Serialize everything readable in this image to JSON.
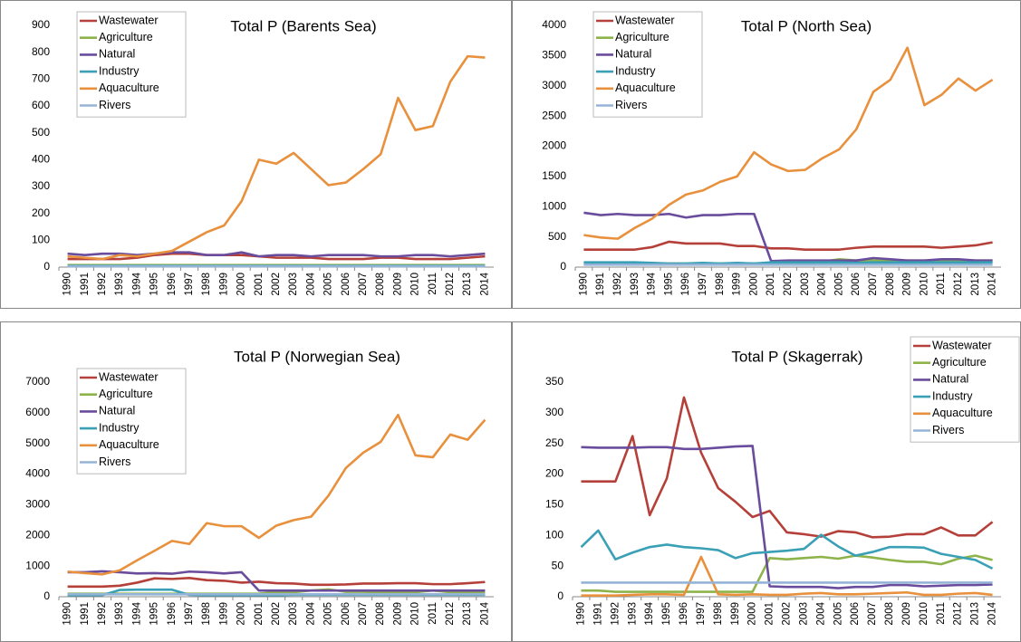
{
  "chart_data": [
    {
      "type": "line",
      "title": "Total P (Barents Sea)",
      "legend": "upper left",
      "grid": false,
      "categories": [
        "1990",
        "1991",
        "1992",
        "1993",
        "1994",
        "1995",
        "1996",
        "1997",
        "1998",
        "1999",
        "2000",
        "2001",
        "2002",
        "2003",
        "2004",
        "2005",
        "2006",
        "2007",
        "2008",
        "2009",
        "2010",
        "2011",
        "2012",
        "2013",
        "2014"
      ],
      "ylim": [
        0,
        900
      ],
      "yticks": [
        0,
        100,
        200,
        300,
        400,
        500,
        600,
        700,
        800,
        900
      ],
      "series": [
        {
          "name": "Wastewater",
          "color": "#b5403a",
          "values": [
            30,
            30,
            30,
            30,
            35,
            45,
            50,
            50,
            45,
            45,
            45,
            40,
            35,
            35,
            35,
            30,
            30,
            30,
            35,
            35,
            30,
            30,
            30,
            35,
            40
          ]
        },
        {
          "name": "Agriculture",
          "color": "#8db34a",
          "values": [
            8,
            8,
            8,
            8,
            8,
            8,
            8,
            8,
            8,
            8,
            8,
            8,
            8,
            8,
            8,
            8,
            8,
            8,
            8,
            8,
            8,
            8,
            8,
            8,
            8
          ]
        },
        {
          "name": "Natural",
          "color": "#6a4c9c",
          "values": [
            50,
            45,
            50,
            50,
            45,
            50,
            55,
            55,
            45,
            45,
            55,
            40,
            45,
            45,
            40,
            45,
            45,
            45,
            40,
            40,
            45,
            45,
            40,
            45,
            50
          ]
        },
        {
          "name": "Industry",
          "color": "#3aa0b5",
          "values": [
            5,
            5,
            5,
            5,
            5,
            5,
            5,
            5,
            5,
            5,
            5,
            5,
            5,
            5,
            5,
            5,
            5,
            5,
            5,
            5,
            5,
            5,
            5,
            5,
            5
          ]
        },
        {
          "name": "Aquaculture",
          "color": "#e8903c",
          "values": [
            40,
            35,
            30,
            45,
            40,
            50,
            60,
            95,
            130,
            155,
            245,
            400,
            385,
            425,
            365,
            305,
            315,
            365,
            420,
            630,
            510,
            525,
            690,
            785,
            780
          ]
        },
        {
          "name": "Rivers",
          "color": "#95b3d7",
          "values": [
            3,
            3,
            3,
            3,
            3,
            3,
            3,
            3,
            3,
            3,
            3,
            3,
            3,
            3,
            3,
            3,
            3,
            3,
            3,
            3,
            3,
            3,
            3,
            3,
            3
          ]
        }
      ]
    },
    {
      "type": "line",
      "title": "Total P (North Sea)",
      "legend": "upper left",
      "grid": false,
      "categories": [
        "1990",
        "1991",
        "1992",
        "1993",
        "1994",
        "1995",
        "1996",
        "1997",
        "1998",
        "1999",
        "2000",
        "2001",
        "2002",
        "2003",
        "2004",
        "2005",
        "2006",
        "2007",
        "2008",
        "2009",
        "2010",
        "2011",
        "2012",
        "2013",
        "2014"
      ],
      "ylim": [
        0,
        4000
      ],
      "yticks": [
        0,
        500,
        1000,
        1500,
        2000,
        2500,
        3000,
        3500,
        4000
      ],
      "series": [
        {
          "name": "Wastewater",
          "color": "#b5403a",
          "values": [
            290,
            290,
            290,
            290,
            330,
            420,
            390,
            390,
            390,
            350,
            350,
            310,
            310,
            290,
            290,
            290,
            320,
            340,
            340,
            340,
            340,
            320,
            340,
            360,
            410
          ]
        },
        {
          "name": "Agriculture",
          "color": "#8db34a",
          "values": [
            60,
            60,
            60,
            60,
            60,
            60,
            60,
            60,
            60,
            60,
            60,
            60,
            80,
            80,
            90,
            130,
            110,
            110,
            100,
            110,
            110,
            100,
            110,
            110,
            110
          ]
        },
        {
          "name": "Natural",
          "color": "#6a4c9c",
          "values": [
            900,
            860,
            880,
            860,
            860,
            880,
            820,
            860,
            860,
            880,
            880,
            100,
            110,
            110,
            110,
            110,
            110,
            150,
            130,
            110,
            110,
            130,
            130,
            110,
            110
          ]
        },
        {
          "name": "Industry",
          "color": "#3aa0b5",
          "values": [
            80,
            80,
            80,
            80,
            70,
            60,
            60,
            70,
            60,
            70,
            60,
            80,
            80,
            80,
            80,
            80,
            70,
            80,
            80,
            80,
            80,
            80,
            80,
            80,
            80
          ]
        },
        {
          "name": "Aquaculture",
          "color": "#e8903c",
          "values": [
            530,
            490,
            470,
            650,
            800,
            1030,
            1200,
            1270,
            1410,
            1500,
            1900,
            1700,
            1590,
            1610,
            1800,
            1950,
            2280,
            2900,
            3100,
            3630,
            2680,
            2850,
            3120,
            2920,
            3100
          ]
        },
        {
          "name": "Rivers",
          "color": "#95b3d7",
          "values": [
            40,
            40,
            40,
            40,
            40,
            40,
            40,
            40,
            40,
            40,
            40,
            40,
            40,
            40,
            40,
            40,
            40,
            40,
            40,
            40,
            40,
            40,
            40,
            40,
            40
          ]
        }
      ]
    },
    {
      "type": "line",
      "title": "Total P (Norwegian Sea)",
      "legend": "upper left",
      "grid": false,
      "categories": [
        "1990",
        "1991",
        "1992",
        "1993",
        "1994",
        "1995",
        "1996",
        "1997",
        "1998",
        "1999",
        "2000",
        "2001",
        "2002",
        "2003",
        "2004",
        "2005",
        "2006",
        "2007",
        "2008",
        "2009",
        "2010",
        "2011",
        "2012",
        "2013",
        "2014"
      ],
      "ylim": [
        0,
        7000
      ],
      "yticks": [
        0,
        1000,
        2000,
        3000,
        4000,
        5000,
        6000,
        7000
      ],
      "series": [
        {
          "name": "Wastewater",
          "color": "#b5403a",
          "values": [
            330,
            330,
            330,
            360,
            460,
            600,
            580,
            610,
            540,
            520,
            460,
            490,
            440,
            430,
            390,
            390,
            400,
            430,
            430,
            440,
            440,
            410,
            410,
            440,
            480
          ]
        },
        {
          "name": "Agriculture",
          "color": "#8db34a",
          "values": [
            100,
            100,
            100,
            100,
            100,
            100,
            100,
            100,
            100,
            100,
            100,
            100,
            150,
            150,
            200,
            240,
            160,
            160,
            150,
            160,
            150,
            200,
            150,
            150,
            150
          ]
        },
        {
          "name": "Natural",
          "color": "#6a4c9c",
          "values": [
            800,
            800,
            830,
            800,
            760,
            770,
            750,
            820,
            800,
            760,
            800,
            200,
            200,
            200,
            200,
            200,
            200,
            200,
            200,
            200,
            200,
            200,
            200,
            200,
            200
          ]
        },
        {
          "name": "Industry",
          "color": "#3aa0b5",
          "values": [
            50,
            50,
            50,
            220,
            230,
            230,
            230,
            60,
            50,
            50,
            50,
            50,
            50,
            60,
            60,
            60,
            60,
            60,
            60,
            60,
            60,
            60,
            60,
            60,
            60
          ]
        },
        {
          "name": "Aquaculture",
          "color": "#e8903c",
          "values": [
            820,
            770,
            730,
            860,
            1190,
            1500,
            1820,
            1720,
            2400,
            2300,
            2300,
            1920,
            2320,
            2500,
            2610,
            3300,
            4200,
            4700,
            5050,
            5930,
            4610,
            4550,
            5290,
            5120,
            5770
          ]
        },
        {
          "name": "Rivers",
          "color": "#95b3d7",
          "values": [
            80,
            80,
            80,
            80,
            80,
            80,
            80,
            80,
            80,
            80,
            80,
            80,
            80,
            80,
            80,
            80,
            80,
            80,
            80,
            80,
            80,
            80,
            80,
            80,
            80
          ]
        }
      ]
    },
    {
      "type": "line",
      "title": "Total P (Skagerrak)",
      "legend": "upper right",
      "grid": false,
      "categories": [
        "1990",
        "1991",
        "1992",
        "1993",
        "1994",
        "1995",
        "1996",
        "1997",
        "1998",
        "1999",
        "2000",
        "2001",
        "2002",
        "2003",
        "2004",
        "2005",
        "2006",
        "2007",
        "2008",
        "2009",
        "2010",
        "2011",
        "2012",
        "2013",
        "2014"
      ],
      "ylim": [
        0,
        350
      ],
      "yticks": [
        0,
        50,
        100,
        150,
        200,
        250,
        300,
        350
      ],
      "series": [
        {
          "name": "Wastewater",
          "color": "#b5403a",
          "values": [
            188,
            188,
            188,
            262,
            133,
            193,
            325,
            235,
            177,
            155,
            130,
            140,
            105,
            102,
            98,
            107,
            105,
            97,
            98,
            102,
            102,
            113,
            100,
            100,
            122
          ]
        },
        {
          "name": "Agriculture",
          "color": "#8db34a",
          "values": [
            10,
            10,
            8,
            8,
            8,
            8,
            8,
            8,
            8,
            8,
            8,
            63,
            61,
            63,
            65,
            62,
            67,
            64,
            60,
            57,
            57,
            53,
            62,
            67,
            60
          ]
        },
        {
          "name": "Natural",
          "color": "#6a4c9c",
          "values": [
            244,
            243,
            243,
            243,
            244,
            244,
            241,
            241,
            243,
            245,
            246,
            17,
            16,
            16,
            16,
            14,
            16,
            16,
            19,
            19,
            17,
            18,
            19,
            19,
            20
          ]
        },
        {
          "name": "Industry",
          "color": "#3aa0b5",
          "values": [
            81,
            108,
            61,
            72,
            81,
            85,
            81,
            79,
            76,
            63,
            71,
            73,
            75,
            78,
            101,
            82,
            67,
            73,
            81,
            81,
            80,
            70,
            65,
            60,
            46
          ]
        },
        {
          "name": "Aquaculture",
          "color": "#e8903c",
          "values": [
            2,
            2,
            2,
            3,
            4,
            4,
            3,
            65,
            4,
            3,
            4,
            3,
            3,
            5,
            6,
            4,
            4,
            5,
            6,
            7,
            3,
            3,
            5,
            6,
            3
          ]
        },
        {
          "name": "Rivers",
          "color": "#95b3d7",
          "values": [
            23,
            23,
            23,
            23,
            23,
            23,
            23,
            23,
            23,
            23,
            23,
            23,
            23,
            23,
            23,
            23,
            23,
            23,
            23,
            23,
            23,
            23,
            23,
            23,
            23
          ]
        }
      ]
    }
  ]
}
